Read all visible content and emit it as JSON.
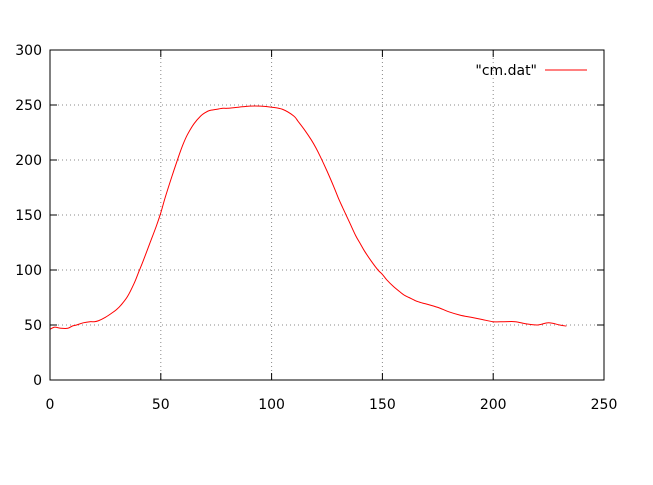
{
  "chart_data": {
    "type": "line",
    "title": "",
    "xlabel": "",
    "ylabel": "",
    "xlim": [
      0,
      250
    ],
    "ylim": [
      0,
      300
    ],
    "xticks": [
      0,
      50,
      100,
      150,
      200,
      250
    ],
    "yticks": [
      0,
      50,
      100,
      150,
      200,
      250,
      300
    ],
    "xtick_labels": [
      "0",
      "50",
      "100",
      "150",
      "200",
      "250"
    ],
    "ytick_labels": [
      "0",
      "50",
      "100",
      "150",
      "200",
      "250",
      "300"
    ],
    "grid": true,
    "grid_style": "dotted",
    "legend_position": "top-right",
    "series": [
      {
        "name": "\"cm.dat\"",
        "color": "#ff0000",
        "x": [
          0,
          2,
          5,
          8,
          10,
          12,
          15,
          18,
          20,
          22,
          25,
          28,
          30,
          32,
          35,
          38,
          40,
          42,
          45,
          48,
          50,
          52,
          55,
          58,
          60,
          62,
          65,
          68,
          70,
          72,
          75,
          78,
          80,
          85,
          90,
          95,
          100,
          105,
          110,
          112,
          115,
          118,
          120,
          122,
          125,
          128,
          130,
          132,
          135,
          138,
          140,
          142,
          145,
          148,
          150,
          152,
          155,
          158,
          160,
          162,
          165,
          168,
          170,
          175,
          180,
          185,
          190,
          195,
          200,
          205,
          210,
          215,
          220,
          225,
          230,
          233
        ],
        "y": [
          46,
          48,
          47,
          47,
          49,
          50,
          52,
          53,
          53,
          54,
          57,
          61,
          64,
          68,
          76,
          88,
          98,
          108,
          124,
          140,
          152,
          166,
          185,
          203,
          214,
          223,
          233,
          240,
          243,
          245,
          246,
          247,
          247,
          248,
          249,
          249,
          248,
          246,
          240,
          235,
          227,
          218,
          211,
          203,
          190,
          176,
          166,
          157,
          144,
          131,
          124,
          117,
          108,
          100,
          96,
          91,
          85,
          80,
          77,
          75,
          72,
          70,
          69,
          66,
          62,
          59,
          57,
          55,
          53,
          53,
          53,
          51,
          50,
          52,
          50,
          49
        ]
      }
    ]
  }
}
